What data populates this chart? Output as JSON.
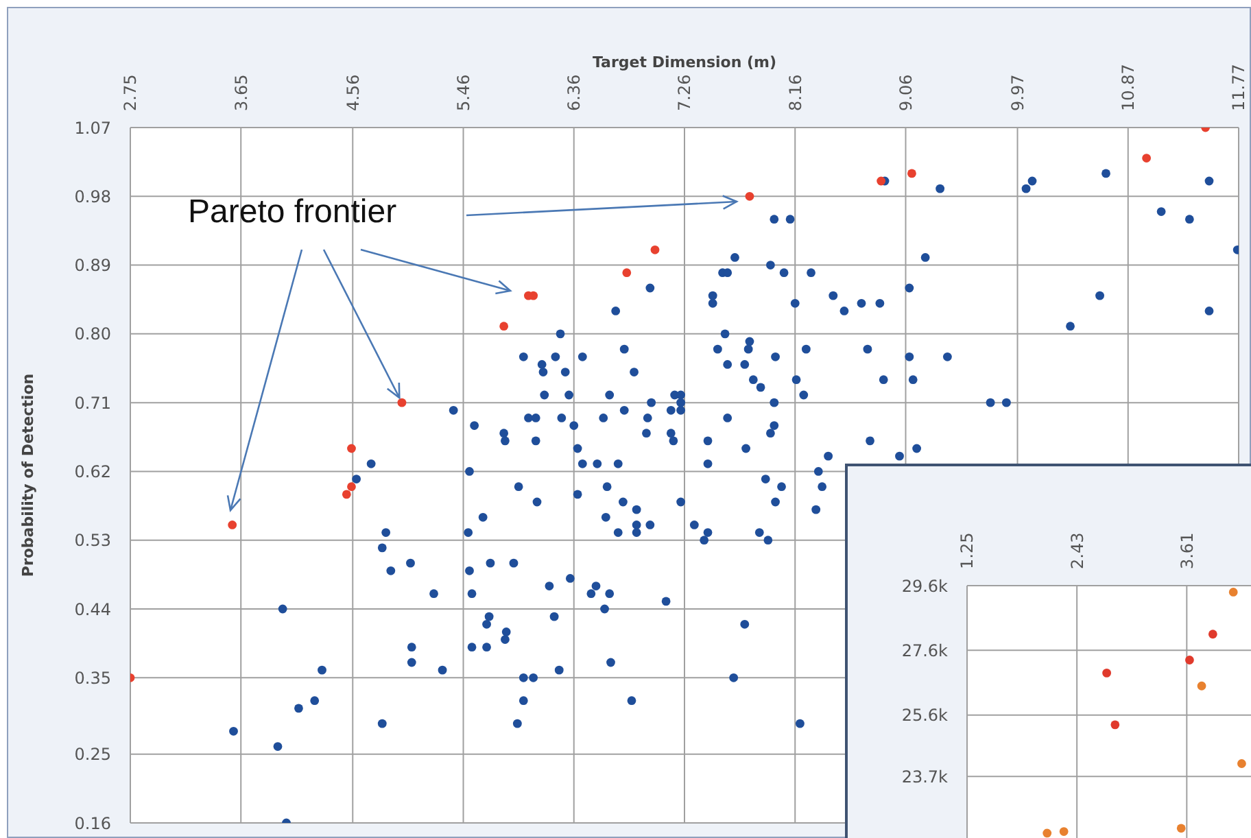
{
  "chart_data": [
    {
      "type": "scatter",
      "xlabel": "Target Dimension (m)",
      "ylabel": "Probability of Detection",
      "annotations": [
        {
          "text": "Pareto frontier",
          "x": 4.96,
          "y": 0.71
        }
      ],
      "xlim": [
        2.75,
        11.77
      ],
      "ylim": [
        0.16,
        1.07
      ],
      "xticks": [
        2.75,
        3.65,
        4.56,
        5.46,
        6.36,
        7.26,
        8.16,
        9.06,
        9.97,
        10.87,
        11.77
      ],
      "yticks": [
        0.16,
        0.25,
        0.35,
        0.44,
        0.53,
        0.62,
        0.71,
        {
          "value": 0.8,
          "label": "0.80"
        },
        0.89,
        0.98,
        1.07
      ],
      "grid": true,
      "marker": "circle",
      "series": [
        {
          "color": "#1f4e9a",
          "x": [
            6.7,
            6.25,
            5.95,
            6.1,
            6.21,
            6.43,
            6.11,
            6.29,
            6.12,
            6.32,
            6.65,
            6.77,
            5.38,
            5.55,
            5.99,
            6.05,
            6.26,
            6.36,
            6.6,
            6.77,
            5.79,
            5.8,
            6.05,
            6.39,
            8.89,
            9.34,
            10.04,
            10.09,
            10.69,
            11.53,
            11.14,
            11.37,
            11.76,
            8.12,
            7.99,
            7.67,
            7.57,
            7.61,
            7.96,
            8.07,
            8.29,
            9.22,
            6.98,
            7.49,
            7.49,
            8.16,
            8.47,
            8.56,
            8.7,
            8.85,
            9.09,
            10.64,
            10.4,
            11.53,
            7.59,
            7.79,
            7.78,
            7.53,
            7.75,
            7.61,
            8.0,
            8.25,
            8.75,
            9.09,
            9.4,
            6.85,
            7.82,
            7.88,
            8.17,
            8.23,
            7.99,
            8.88,
            9.12,
            9.75,
            9.88,
            7.18,
            7.23,
            7.23,
            7.23,
            7.15,
            6.99,
            6.96,
            6.95,
            7.15,
            7.17,
            7.45,
            7.61,
            7.99,
            7.96,
            7.76,
            8.77,
            9.15,
            6.43,
            6.55,
            6.72,
            5.51,
            4.71,
            4.59,
            5.91,
            6.06,
            6.39,
            6.63,
            6.76,
            5.62,
            5.5,
            6.62,
            6.72,
            4.83,
            4.8,
            4.87,
            5.03,
            5.22,
            5.51,
            5.53,
            5.68,
            5.87,
            6.16,
            6.33,
            6.54,
            6.5,
            6.65,
            6.61,
            6.2,
            5.67,
            5.65,
            5.81,
            5.8,
            5.53,
            5.65,
            5.04,
            5.04,
            5.29,
            6.24,
            6.66,
            5.95,
            6.03,
            5.95,
            5.9,
            4.8,
            3.99,
            4.31,
            4.25,
            4.12,
            3.59,
            3.95,
            4.02,
            7.45,
            7.92,
            8.05,
            8.0,
            7.23,
            6.87,
            6.87,
            6.87,
            6.98,
            7.34,
            7.45,
            7.42,
            7.87,
            7.94,
            8.43,
            8.35,
            8.38,
            8.33,
            9.01,
            7.11,
            7.75,
            7.66,
            6.83,
            8.2
          ],
          "values": [
            0.83,
            0.8,
            0.77,
            0.76,
            0.77,
            0.77,
            0.75,
            0.75,
            0.72,
            0.72,
            0.72,
            0.78,
            0.7,
            0.68,
            0.69,
            0.69,
            0.69,
            0.68,
            0.69,
            0.7,
            0.67,
            0.66,
            0.66,
            0.65,
            1.0,
            0.99,
            0.99,
            1.0,
            1.01,
            1.0,
            0.96,
            0.95,
            0.91,
            0.95,
            0.95,
            0.9,
            0.88,
            0.88,
            0.89,
            0.88,
            0.88,
            0.9,
            0.86,
            0.85,
            0.84,
            0.84,
            0.85,
            0.83,
            0.84,
            0.84,
            0.86,
            0.85,
            0.81,
            0.83,
            0.8,
            0.79,
            0.78,
            0.78,
            0.76,
            0.76,
            0.77,
            0.78,
            0.78,
            0.77,
            0.77,
            0.75,
            0.74,
            0.73,
            0.74,
            0.72,
            0.71,
            0.74,
            0.74,
            0.71,
            0.71,
            0.72,
            0.72,
            0.71,
            0.7,
            0.7,
            0.71,
            0.69,
            0.67,
            0.67,
            0.66,
            0.66,
            0.69,
            0.68,
            0.67,
            0.65,
            0.66,
            0.65,
            0.63,
            0.63,
            0.63,
            0.62,
            0.63,
            0.61,
            0.6,
            0.58,
            0.59,
            0.6,
            0.58,
            0.56,
            0.54,
            0.56,
            0.54,
            0.54,
            0.52,
            0.49,
            0.5,
            0.46,
            0.49,
            0.46,
            0.5,
            0.5,
            0.47,
            0.48,
            0.47,
            0.46,
            0.46,
            0.44,
            0.43,
            0.43,
            0.42,
            0.41,
            0.4,
            0.39,
            0.39,
            0.39,
            0.37,
            0.36,
            0.36,
            0.37,
            0.35,
            0.35,
            0.32,
            0.29,
            0.29,
            0.44,
            0.36,
            0.32,
            0.31,
            0.28,
            0.26,
            0.16,
            0.63,
            0.61,
            0.6,
            0.58,
            0.58,
            0.57,
            0.55,
            0.54,
            0.55,
            0.55,
            0.54,
            0.53,
            0.54,
            0.53,
            0.64,
            0.62,
            0.6,
            0.57,
            0.64,
            0.45,
            0.42,
            0.35,
            0.32,
            0.29
          ]
        },
        {
          "color": "#e8412f",
          "x": [
            2.75,
            3.58,
            4.51,
            4.55,
            4.55,
            4.96,
            5.79,
            5.99,
            6.03,
            6.79,
            7.02,
            7.79,
            8.86,
            9.11,
            11.02,
            11.5
          ],
          "values": [
            0.35,
            0.55,
            0.59,
            0.6,
            0.65,
            0.71,
            0.81,
            0.85,
            0.85,
            0.88,
            0.91,
            0.98,
            1.0,
            1.01,
            1.03,
            1.07
          ]
        }
      ]
    },
    {
      "type": "scatter",
      "xlim": [
        1.25,
        4.3
      ],
      "ylim": [
        21800,
        29600
      ],
      "xticks": [
        1.25,
        2.43,
        3.61
      ],
      "yticks": [
        {
          "value": 23700,
          "label": "23.7k"
        },
        {
          "value": 25600,
          "label": "25.6k"
        },
        {
          "value": 27600,
          "label": "27.6k"
        },
        {
          "value": 29600,
          "label": "29.6k"
        }
      ],
      "grid": true,
      "marker": "circle",
      "x": [
        4.11,
        3.89,
        3.64,
        2.75,
        3.77,
        2.84,
        4.2,
        3.55,
        2.11,
        2.29
      ],
      "values": [
        29400,
        28100,
        27300,
        26900,
        26500,
        25300,
        24100,
        22100,
        21950,
        22000
      ],
      "colors": [
        "#e8812f",
        "#e03a2c",
        "#e03a2c",
        "#e03a2c",
        "#e8812f",
        "#e03a2c",
        "#e8812f",
        "#e8812f",
        "#e8812f",
        "#e8812f"
      ]
    }
  ]
}
